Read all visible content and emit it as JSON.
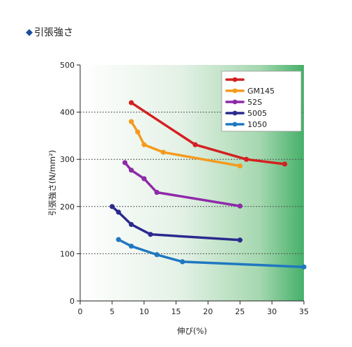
{
  "section": {
    "marker": "◆",
    "title": "引張強さ"
  },
  "chart_data": {
    "type": "line",
    "ylabel": "引張強さ(N/mm²)",
    "xlabel": "伸び(%)",
    "xlim": [
      0,
      35
    ],
    "ylim": [
      0,
      500
    ],
    "xticks": [
      "0",
      "5",
      "10",
      "15",
      "20",
      "25",
      "30",
      "35"
    ],
    "yticks": [
      "0",
      "100",
      "200",
      "300",
      "400",
      "500"
    ],
    "grid": "horizontal-dotted",
    "legend_position": "top-right",
    "background": "white-to-green horizontal gradient",
    "series": [
      {
        "name": "",
        "color": "#d42020",
        "points": [
          [
            8,
            420
          ],
          [
            18,
            331
          ],
          [
            26,
            300
          ],
          [
            32,
            290
          ]
        ]
      },
      {
        "name": "GM145",
        "color": "#f59a1e",
        "points": [
          [
            8,
            380
          ],
          [
            9,
            358
          ],
          [
            10,
            331
          ],
          [
            13,
            315
          ],
          [
            25,
            286
          ]
        ]
      },
      {
        "name": "52S",
        "color": "#8e2aa8",
        "points": [
          [
            7,
            293
          ],
          [
            8,
            277
          ],
          [
            10,
            259
          ],
          [
            12,
            230
          ],
          [
            25,
            201
          ]
        ]
      },
      {
        "name": "5005",
        "color": "#2a2a8e",
        "points": [
          [
            5,
            200
          ],
          [
            6,
            188
          ],
          [
            8,
            162
          ],
          [
            11,
            141
          ],
          [
            25,
            129
          ]
        ]
      },
      {
        "name": "1050",
        "color": "#1f78c0",
        "points": [
          [
            6,
            130
          ],
          [
            8,
            116
          ],
          [
            12,
            98
          ],
          [
            16,
            83
          ],
          [
            35,
            72
          ]
        ]
      }
    ]
  }
}
